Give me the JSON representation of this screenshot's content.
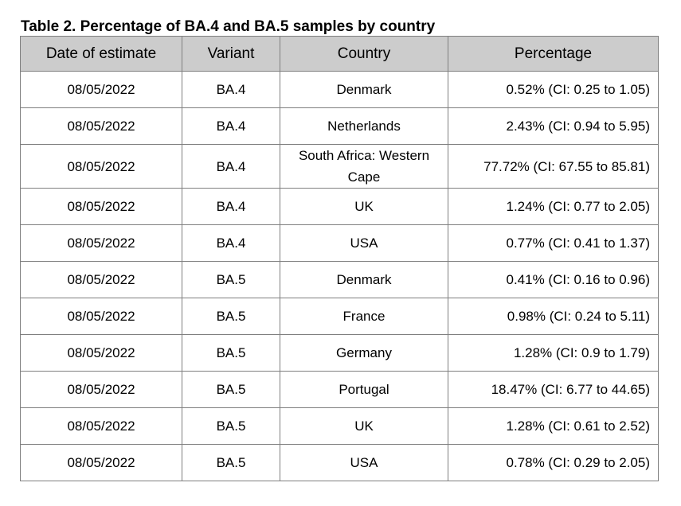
{
  "caption": "Table 2. Percentage of BA.4 and BA.5 samples by country",
  "headers": [
    "Date of estimate",
    "Variant",
    "Country",
    "Percentage"
  ],
  "rows": [
    {
      "date": "08/05/2022",
      "variant": "BA.4",
      "country": "Denmark",
      "percentage": "0.52% (CI: 0.25 to 1.05)"
    },
    {
      "date": "08/05/2022",
      "variant": "BA.4",
      "country": "Netherlands",
      "percentage": "2.43% (CI: 0.94 to 5.95)"
    },
    {
      "date": "08/05/2022",
      "variant": "BA.4",
      "country": "South Africa: Western Cape",
      "percentage": "77.72% (CI: 67.55 to 85.81)"
    },
    {
      "date": "08/05/2022",
      "variant": "BA.4",
      "country": "UK",
      "percentage": "1.24% (CI: 0.77 to 2.05)"
    },
    {
      "date": "08/05/2022",
      "variant": "BA.4",
      "country": "USA",
      "percentage": "0.77% (CI: 0.41 to 1.37)"
    },
    {
      "date": "08/05/2022",
      "variant": "BA.5",
      "country": "Denmark",
      "percentage": "0.41% (CI: 0.16 to 0.96)"
    },
    {
      "date": "08/05/2022",
      "variant": "BA.5",
      "country": "France",
      "percentage": "0.98% (CI: 0.24 to 5.11)"
    },
    {
      "date": "08/05/2022",
      "variant": "BA.5",
      "country": "Germany",
      "percentage": "1.28% (CI: 0.9 to 1.79)"
    },
    {
      "date": "08/05/2022",
      "variant": "BA.5",
      "country": "Portugal",
      "percentage": "18.47% (CI: 6.77 to 44.65)"
    },
    {
      "date": "08/05/2022",
      "variant": "BA.5",
      "country": "UK",
      "percentage": "1.28% (CI: 0.61 to 2.52)"
    },
    {
      "date": "08/05/2022",
      "variant": "BA.5",
      "country": "USA",
      "percentage": "0.78% (CI: 0.29 to 2.05)"
    }
  ]
}
